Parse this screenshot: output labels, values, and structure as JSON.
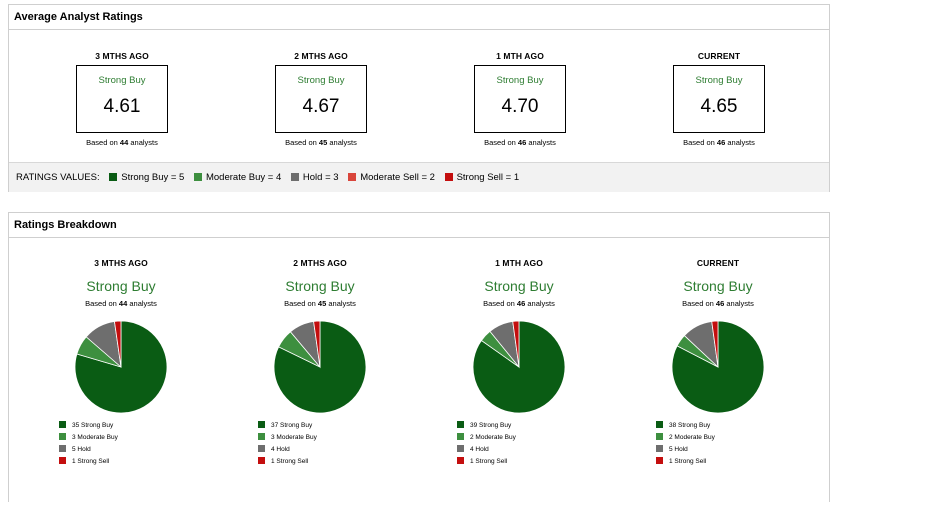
{
  "avg": {
    "title": "Average Analyst Ratings",
    "columns": [
      {
        "period": "3 MTHS AGO",
        "rating": "Strong Buy",
        "value": "4.61",
        "based_prefix": "Based on",
        "count": "44",
        "based_suffix": "analysts"
      },
      {
        "period": "2 MTHS AGO",
        "rating": "Strong Buy",
        "value": "4.67",
        "based_prefix": "Based on",
        "count": "45",
        "based_suffix": "analysts"
      },
      {
        "period": "1 MTH AGO",
        "rating": "Strong Buy",
        "value": "4.70",
        "based_prefix": "Based on",
        "count": "46",
        "based_suffix": "analysts"
      },
      {
        "period": "CURRENT",
        "rating": "Strong Buy",
        "value": "4.65",
        "based_prefix": "Based on",
        "count": "46",
        "based_suffix": "analysts"
      }
    ],
    "ratings_values": {
      "label": "RATINGS VALUES:",
      "items": [
        {
          "label": "Strong Buy = 5",
          "color": "#0a5c14"
        },
        {
          "label": "Moderate Buy = 4",
          "color": "#3d8f3f"
        },
        {
          "label": "Hold = 3",
          "color": "#6e6e6e"
        },
        {
          "label": "Moderate Sell = 2",
          "color": "#d9453b"
        },
        {
          "label": "Strong Sell = 1",
          "color": "#c40e0e"
        }
      ]
    }
  },
  "breakdown": {
    "title": "Ratings Breakdown",
    "columns": [
      {
        "period": "3 MTHS AGO",
        "rating": "Strong Buy",
        "based_prefix": "Based on",
        "count": "44",
        "based_suffix": "analysts",
        "legend": [
          "35 Strong Buy",
          "3 Moderate Buy",
          "5 Hold",
          "1 Strong Sell"
        ]
      },
      {
        "period": "2 MTHS AGO",
        "rating": "Strong Buy",
        "based_prefix": "Based on",
        "count": "45",
        "based_suffix": "analysts",
        "legend": [
          "37 Strong Buy",
          "3 Moderate Buy",
          "4 Hold",
          "1 Strong Sell"
        ]
      },
      {
        "period": "1 MTH AGO",
        "rating": "Strong Buy",
        "based_prefix": "Based on",
        "count": "46",
        "based_suffix": "analysts",
        "legend": [
          "39 Strong Buy",
          "2 Moderate Buy",
          "4 Hold",
          "1 Strong Sell"
        ]
      },
      {
        "period": "CURRENT",
        "rating": "Strong Buy",
        "based_prefix": "Based on",
        "count": "46",
        "based_suffix": "analysts",
        "legend": [
          "38 Strong Buy",
          "2 Moderate Buy",
          "5 Hold",
          "1 Strong Sell"
        ]
      }
    ]
  },
  "chart_data": [
    {
      "type": "pie",
      "categories": [
        "Strong Buy",
        "Moderate Buy",
        "Hold",
        "Strong Sell"
      ],
      "values": [
        35,
        3,
        5,
        1
      ],
      "colors": [
        "#0a5c14",
        "#3d8f3f",
        "#6e6e6e",
        "#c40e0e"
      ]
    },
    {
      "type": "pie",
      "categories": [
        "Strong Buy",
        "Moderate Buy",
        "Hold",
        "Strong Sell"
      ],
      "values": [
        37,
        3,
        4,
        1
      ],
      "colors": [
        "#0a5c14",
        "#3d8f3f",
        "#6e6e6e",
        "#c40e0e"
      ]
    },
    {
      "type": "pie",
      "categories": [
        "Strong Buy",
        "Moderate Buy",
        "Hold",
        "Strong Sell"
      ],
      "values": [
        39,
        2,
        4,
        1
      ],
      "colors": [
        "#0a5c14",
        "#3d8f3f",
        "#6e6e6e",
        "#c40e0e"
      ]
    },
    {
      "type": "pie",
      "categories": [
        "Strong Buy",
        "Moderate Buy",
        "Hold",
        "Strong Sell"
      ],
      "values": [
        38,
        2,
        5,
        1
      ],
      "colors": [
        "#0a5c14",
        "#3d8f3f",
        "#6e6e6e",
        "#c40e0e"
      ]
    }
  ]
}
